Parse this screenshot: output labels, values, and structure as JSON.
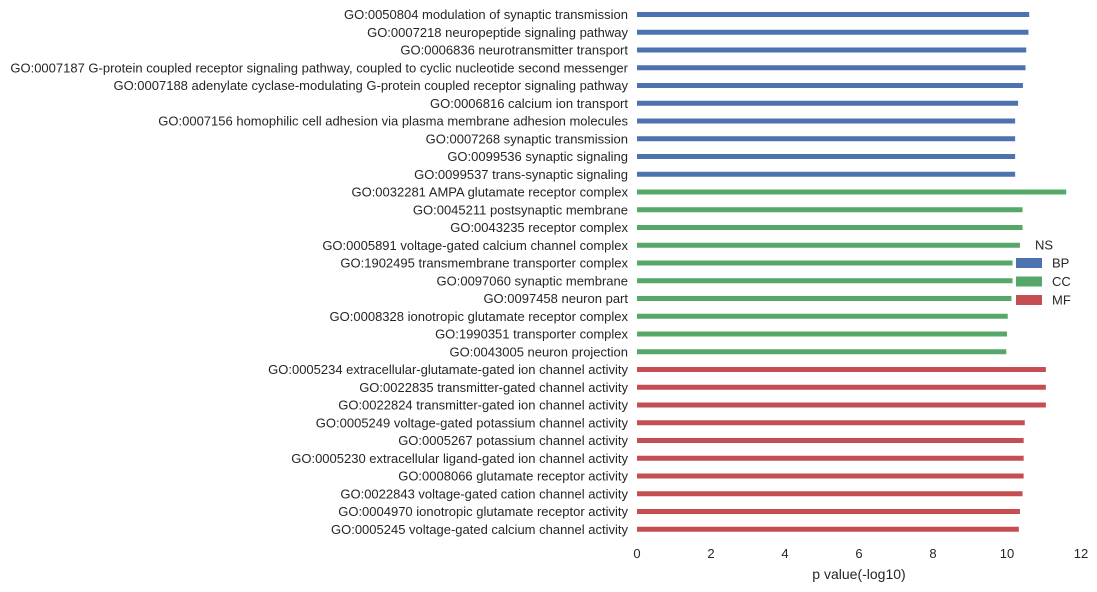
{
  "chart_data": {
    "type": "bar",
    "orientation": "horizontal",
    "xlabel": "p value(-log10)",
    "ylabel": "",
    "xlim": [
      0,
      12
    ],
    "xticks": [
      0,
      2,
      4,
      6,
      8,
      10,
      12
    ],
    "grid": false,
    "legend": {
      "title": "NS",
      "placement": "right",
      "entries": [
        "BP",
        "CC",
        "MF"
      ]
    },
    "series_colors": {
      "BP": "#4c72b0",
      "CC": "#55a868",
      "MF": "#c44e52"
    },
    "categories": [
      "GO:0050804 modulation of synaptic transmission",
      "GO:0007218 neuropeptide signaling pathway",
      "GO:0006836 neurotransmitter transport",
      "GO:0007187 G-protein coupled receptor signaling pathway, coupled to cyclic nucleotide second messenger",
      "GO:0007188 adenylate cyclase-modulating G-protein coupled receptor signaling pathway",
      "GO:0006816 calcium ion transport",
      "GO:0007156 homophilic cell adhesion via plasma membrane adhesion molecules",
      "GO:0007268 synaptic transmission",
      "GO:0099536 synaptic signaling",
      "GO:0099537 trans-synaptic signaling",
      "GO:0032281 AMPA glutamate receptor complex",
      "GO:0045211 postsynaptic membrane",
      "GO:0043235 receptor complex",
      "GO:0005891 voltage-gated calcium channel complex",
      "GO:1902495 transmembrane transporter complex",
      "GO:0097060 synaptic membrane",
      "GO:0097458 neuron part",
      "GO:0008328 ionotropic glutamate receptor complex",
      "GO:1990351 transporter complex",
      "GO:0043005 neuron projection",
      "GO:0005234 extracellular-glutamate-gated ion channel activity",
      "GO:0022835 transmitter-gated channel activity",
      "GO:0022824 transmitter-gated ion channel activity",
      "GO:0005249 voltage-gated potassium channel activity",
      "GO:0005267 potassium channel activity",
      "GO:0005230 extracellular ligand-gated ion channel activity",
      "GO:0008066 glutamate receptor activity",
      "GO:0022843 voltage-gated cation channel activity",
      "GO:0004970 ionotropic glutamate receptor activity",
      "GO:0005245 voltage-gated calcium channel activity"
    ],
    "groups": [
      "BP",
      "BP",
      "BP",
      "BP",
      "BP",
      "BP",
      "BP",
      "BP",
      "BP",
      "BP",
      "CC",
      "CC",
      "CC",
      "CC",
      "CC",
      "CC",
      "CC",
      "CC",
      "CC",
      "CC",
      "MF",
      "MF",
      "MF",
      "MF",
      "MF",
      "MF",
      "MF",
      "MF",
      "MF",
      "MF"
    ],
    "values": [
      10.6,
      10.58,
      10.52,
      10.5,
      10.43,
      10.3,
      10.22,
      10.22,
      10.22,
      10.22,
      11.6,
      10.42,
      10.42,
      10.35,
      10.15,
      10.15,
      10.12,
      10.02,
      10.0,
      9.98,
      11.05,
      11.05,
      11.05,
      10.48,
      10.45,
      10.45,
      10.45,
      10.42,
      10.35,
      10.32
    ]
  }
}
